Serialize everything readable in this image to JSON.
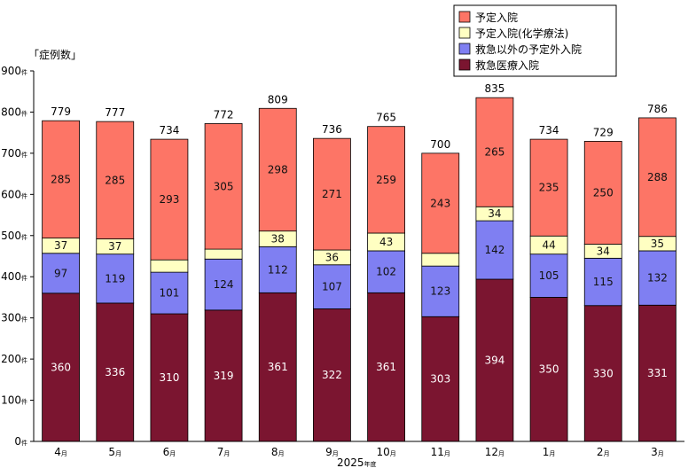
{
  "chart_data": {
    "type": "bar",
    "stacked": true,
    "ylabel": "「症例数」",
    "xlabel": "2025",
    "xlabel_suffix": "年度",
    "y_unit": "件",
    "x_unit": "月",
    "ylim": [
      0,
      900
    ],
    "yticks": [
      0,
      100,
      200,
      300,
      400,
      500,
      600,
      700,
      800,
      900
    ],
    "categories": [
      "4",
      "5",
      "6",
      "7",
      "8",
      "9",
      "10",
      "11",
      "12",
      "1",
      "2",
      "3"
    ],
    "series": [
      {
        "name": "救急医療入院",
        "color": "#7b1530",
        "values": [
          360,
          336,
          310,
          319,
          361,
          322,
          361,
          303,
          394,
          350,
          330,
          331
        ],
        "labels": [
          "360",
          "336",
          "310",
          "319",
          "361",
          "322",
          "361",
          "303",
          "394",
          "350",
          "330",
          "331"
        ],
        "label_color": "light"
      },
      {
        "name": "救急以外の予定外入院",
        "color": "#7f7ff2",
        "values": [
          97,
          119,
          101,
          124,
          112,
          107,
          102,
          123,
          142,
          105,
          115,
          132
        ],
        "labels": [
          "97",
          "119",
          "101",
          "124",
          "112",
          "107",
          "102",
          "123",
          "142",
          "105",
          "115",
          "132"
        ],
        "label_color": "dark"
      },
      {
        "name": "予定入院(化学療法)",
        "color": "#ffffc2",
        "values": [
          37,
          37,
          30,
          24,
          38,
          36,
          43,
          31,
          34,
          44,
          34,
          35
        ],
        "labels": [
          "37",
          "37",
          "",
          "",
          "38",
          "36",
          "43",
          "",
          "34",
          "44",
          "34",
          "35"
        ],
        "label_color": "dark"
      },
      {
        "name": "予定入院",
        "color": "#fd7566",
        "values": [
          285,
          285,
          293,
          305,
          298,
          271,
          259,
          243,
          265,
          235,
          250,
          288
        ],
        "labels": [
          "285",
          "285",
          "293",
          "305",
          "298",
          "271",
          "259",
          "243",
          "265",
          "235",
          "250",
          "288"
        ],
        "label_color": "dark"
      }
    ],
    "totals": [
      "779",
      "777",
      "734",
      "772",
      "809",
      "736",
      "765",
      "700",
      "835",
      "734",
      "729",
      "786"
    ],
    "legend": {
      "position": "top-right",
      "order": [
        "予定入院",
        "予定入院(化学療法)",
        "救急以外の予定外入院",
        "救急医療入院"
      ]
    },
    "grid": false
  }
}
